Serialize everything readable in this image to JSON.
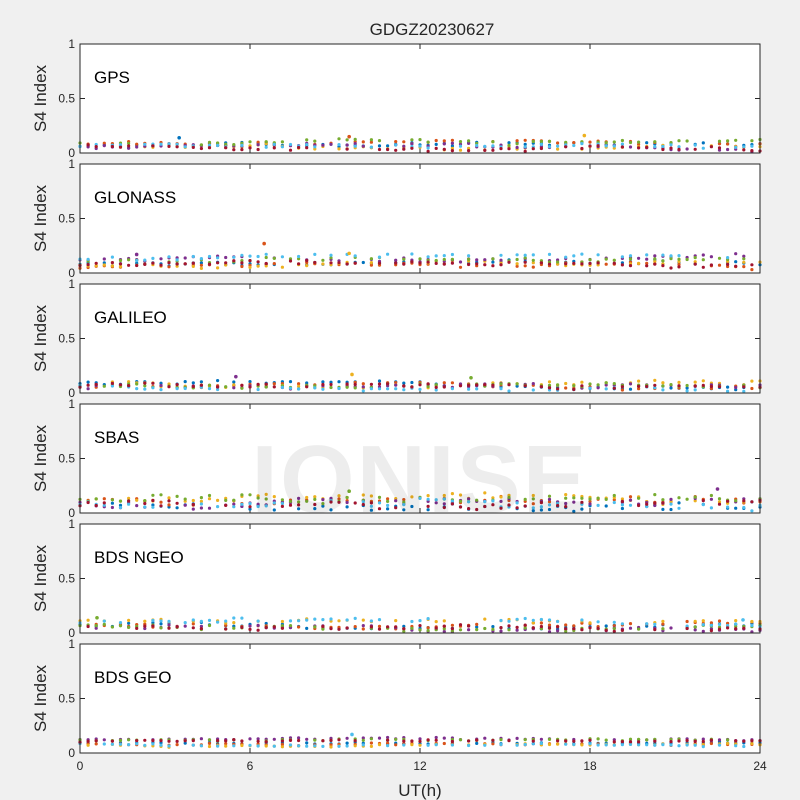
{
  "figure": {
    "title": "GDGZ20230627",
    "watermark": "IONISE"
  },
  "chart_data": {
    "type": "scatter",
    "xlabel": "UT(h)",
    "x_ticks": [
      0,
      6,
      12,
      18,
      24
    ],
    "x_tick_labels": [
      "0",
      "6",
      "12",
      "18",
      "24"
    ],
    "xlim": [
      0,
      24
    ],
    "ylabel": "S4 Index",
    "ylim": [
      0,
      1
    ],
    "y_ticks": [
      0,
      0.5,
      1
    ],
    "y_tick_labels": [
      "0",
      "0.5",
      "1"
    ],
    "series_colors": [
      "#0072BD",
      "#D95319",
      "#EDB120",
      "#7E2F8E",
      "#77AC30",
      "#4DBEEE",
      "#A2142F"
    ],
    "panels": [
      {
        "label": "GPS",
        "baselines": [
          0.06,
          0.08,
          0.07,
          0.05,
          0.09,
          0.07,
          0.06
        ],
        "noise": 0.03,
        "spikes": [
          {
            "x": 3.5,
            "y": 0.14
          },
          {
            "x": 9.5,
            "y": 0.15
          },
          {
            "x": 17.8,
            "y": 0.16
          }
        ]
      },
      {
        "label": "GLONASS",
        "baselines": [
          0.08,
          0.06,
          0.07,
          0.14,
          0.1,
          0.13,
          0.07
        ],
        "noise": 0.03,
        "spikes": [
          {
            "x": 6.5,
            "y": 0.27
          },
          {
            "x": 9.5,
            "y": 0.18
          },
          {
            "x": 2.0,
            "y": 0.17
          }
        ]
      },
      {
        "label": "GALILEO",
        "baselines": [
          0.07,
          0.06,
          0.09,
          0.05,
          0.08,
          0.06,
          0.07
        ],
        "noise": 0.03,
        "spikes": [
          {
            "x": 9.6,
            "y": 0.17
          },
          {
            "x": 5.5,
            "y": 0.15
          },
          {
            "x": 13.8,
            "y": 0.14
          }
        ]
      },
      {
        "label": "SBAS",
        "baselines": [
          0.09,
          0.13,
          0.11,
          0.08,
          0.1,
          0.09,
          0.07
        ],
        "noise": 0.05,
        "spikes": [
          {
            "x": 22.5,
            "y": 0.22
          },
          {
            "x": 9.5,
            "y": 0.2
          }
        ]
      },
      {
        "label": "BDS NGEO",
        "baselines": [
          0.08,
          0.07,
          0.09,
          0.05,
          0.06,
          0.1,
          0.06
        ],
        "noise": 0.03,
        "spikes": [
          {
            "x": 0.6,
            "y": 0.14
          },
          {
            "x": 23.4,
            "y": 0.12
          }
        ]
      },
      {
        "label": "BDS GEO",
        "baselines": [
          0.1,
          0.09,
          0.07,
          0.12,
          0.11,
          0.08,
          0.1
        ],
        "noise": 0.015,
        "spikes": [
          {
            "x": 9.6,
            "y": 0.17
          }
        ]
      }
    ]
  }
}
